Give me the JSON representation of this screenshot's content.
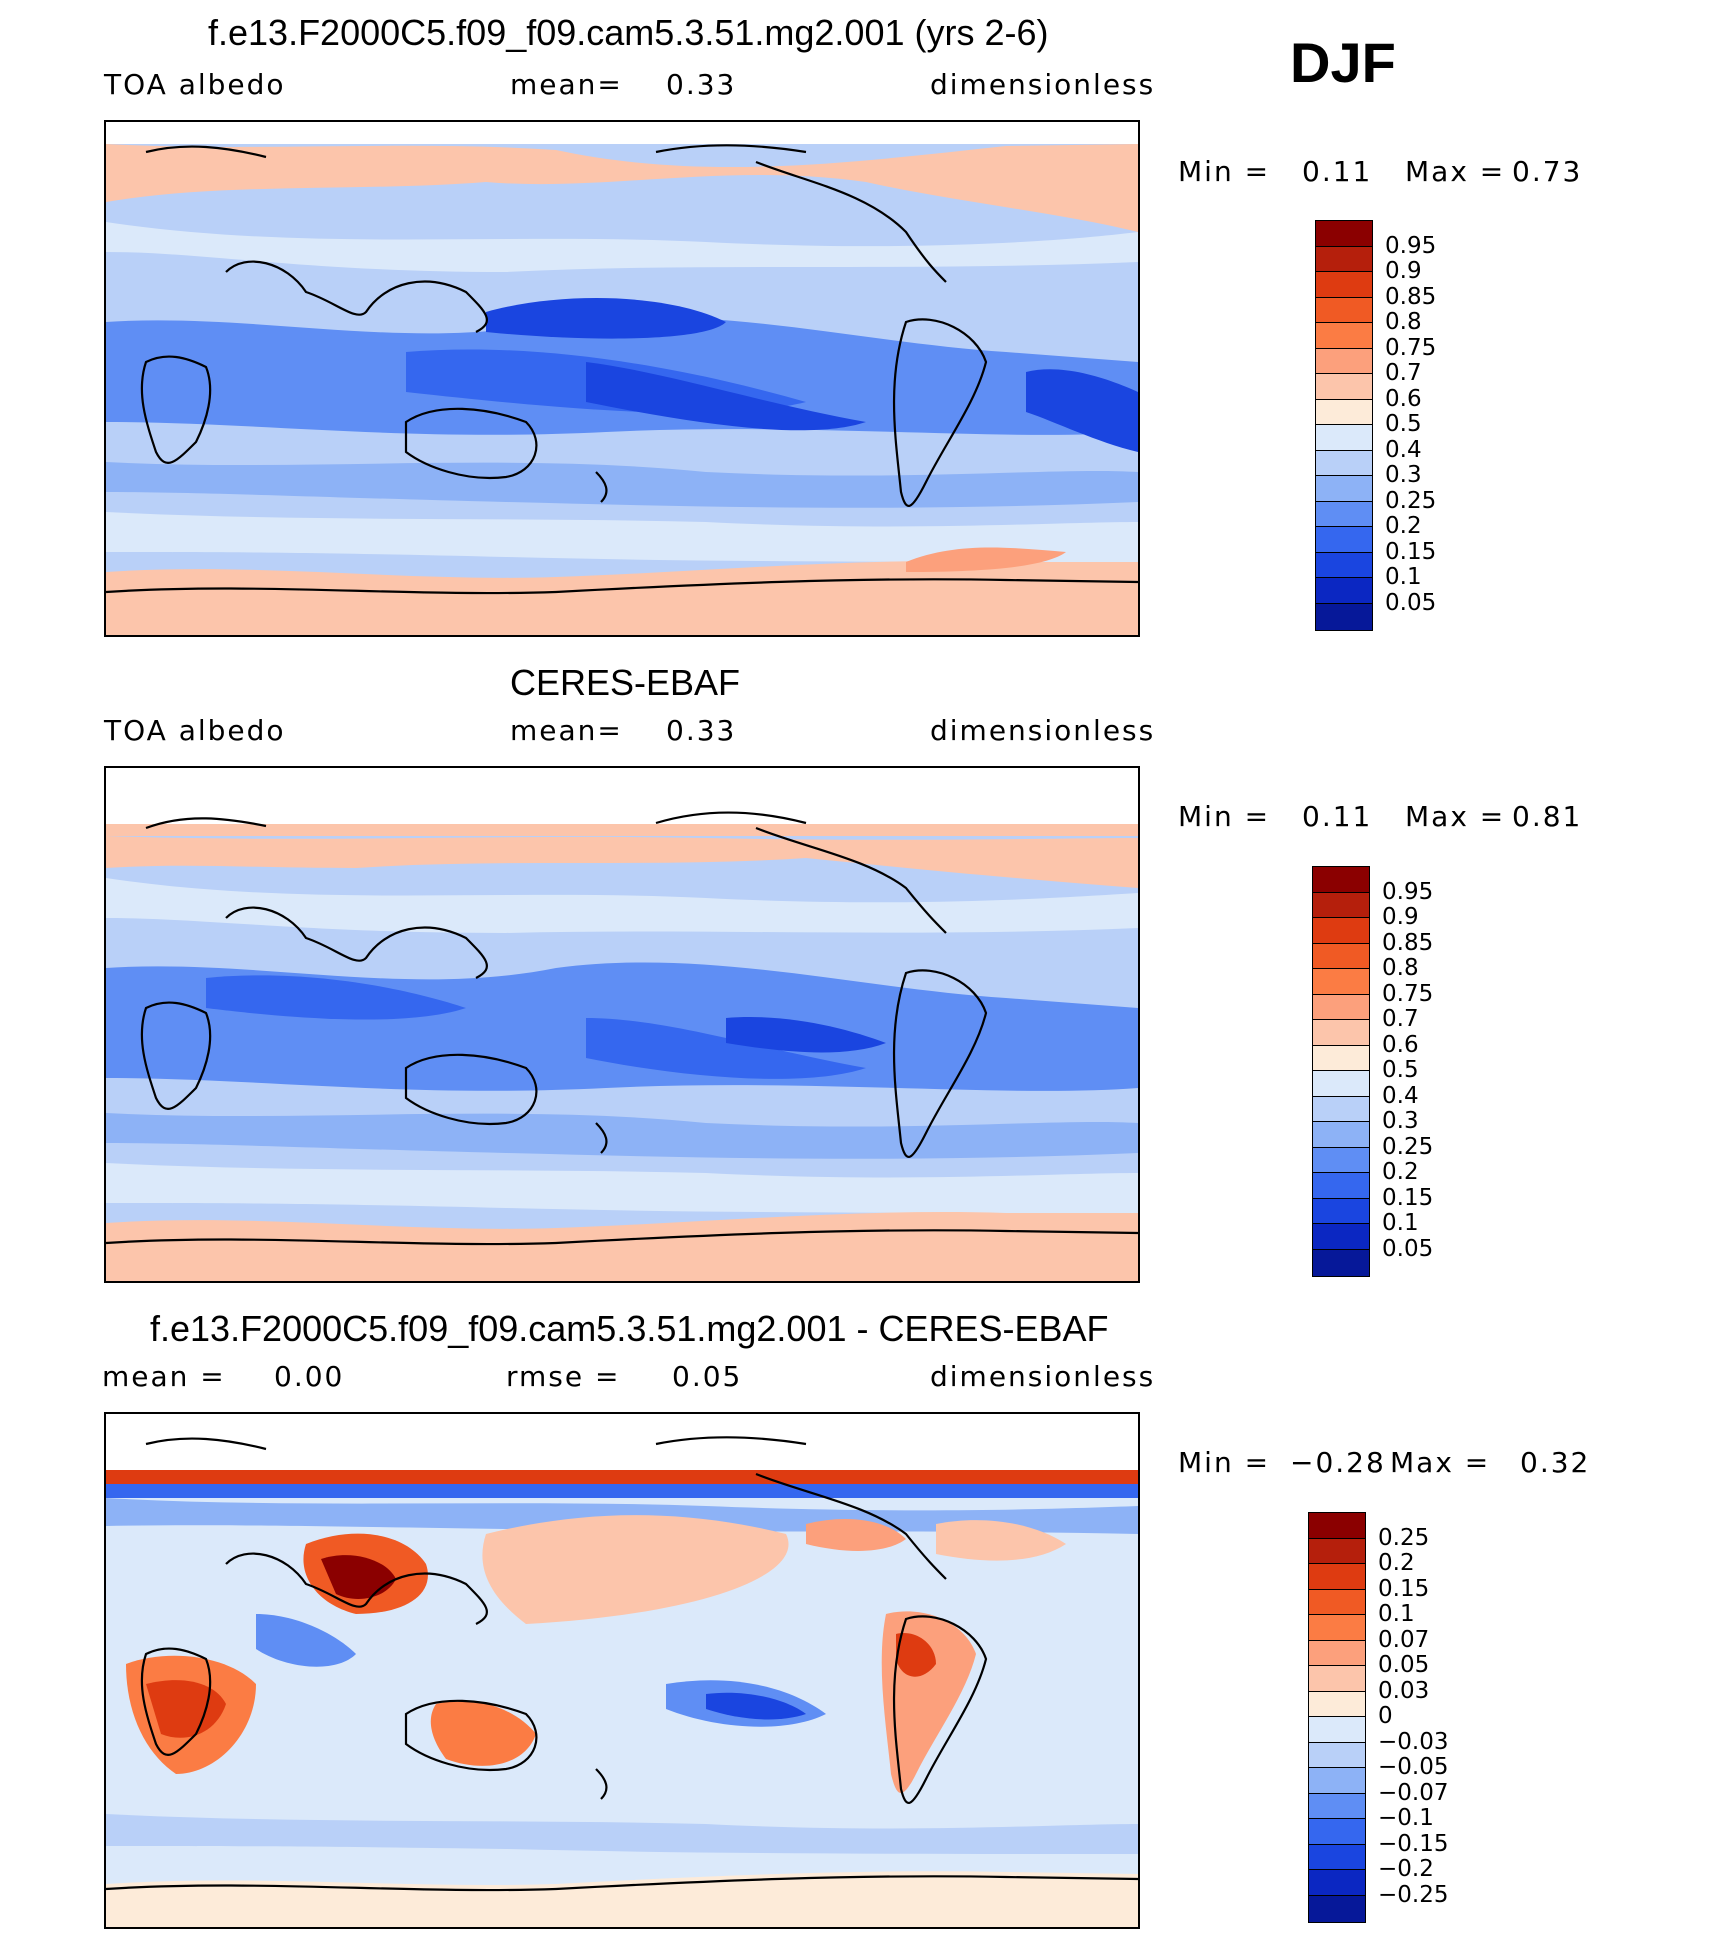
{
  "season": "DJF",
  "panels": [
    {
      "id": "model",
      "title": "f.e13.F2000C5.f09_f09.cam5.3.51.mg2.001 (yrs 2-6)",
      "left_label": "TOA albedo",
      "center_label": "mean=",
      "center_value": "0.33",
      "right_label": "dimensionless",
      "stats_min_label": "Min =",
      "stats_min": "0.11",
      "stats_max_label": "Max =",
      "stats_max": "0.73",
      "colorbar": {
        "colors": [
          "#8b0000",
          "#b51f0c",
          "#de3b11",
          "#f05a24",
          "#fb7c44",
          "#fca07c",
          "#fcc5ab",
          "#fdebd9",
          "#dbe9fa",
          "#b9d0f8",
          "#8db2f6",
          "#5f8ef4",
          "#3567ef",
          "#1a45e0",
          "#0b27c2",
          "#061899"
        ],
        "labels": [
          "0.95",
          "0.9",
          "0.85",
          "0.8",
          "0.75",
          "0.7",
          "0.6",
          "0.5",
          "0.4",
          "0.3",
          "0.25",
          "0.2",
          "0.15",
          "0.1",
          "0.05"
        ]
      }
    },
    {
      "id": "obs",
      "title": "CERES-EBAF",
      "left_label": "TOA albedo",
      "center_label": "mean=",
      "center_value": "0.33",
      "right_label": "dimensionless",
      "stats_min_label": "Min =",
      "stats_min": "0.11",
      "stats_max_label": "Max =",
      "stats_max": "0.81",
      "colorbar": {
        "colors": [
          "#8b0000",
          "#b51f0c",
          "#de3b11",
          "#f05a24",
          "#fb7c44",
          "#fca07c",
          "#fcc5ab",
          "#fdebd9",
          "#dbe9fa",
          "#b9d0f8",
          "#8db2f6",
          "#5f8ef4",
          "#3567ef",
          "#1a45e0",
          "#0b27c2",
          "#061899"
        ],
        "labels": [
          "0.95",
          "0.9",
          "0.85",
          "0.8",
          "0.75",
          "0.7",
          "0.6",
          "0.5",
          "0.4",
          "0.3",
          "0.25",
          "0.2",
          "0.15",
          "0.1",
          "0.05"
        ]
      }
    },
    {
      "id": "diff",
      "title": "f.e13.F2000C5.f09_f09.cam5.3.51.mg2.001 - CERES-EBAF",
      "left_label": "mean =",
      "left_value": "0.00",
      "center_label": "rmse =",
      "center_value": "0.05",
      "right_label": "dimensionless",
      "stats_min_label": "Min =",
      "stats_min": "−0.28",
      "stats_max_label": "Max =",
      "stats_max": "0.32",
      "colorbar": {
        "colors": [
          "#8b0000",
          "#b51f0c",
          "#de3b11",
          "#f05a24",
          "#fb7c44",
          "#fca07c",
          "#fcc5ab",
          "#fdebd9",
          "#dbe9fa",
          "#b9d0f8",
          "#8db2f6",
          "#5f8ef4",
          "#3567ef",
          "#1a45e0",
          "#0b27c2",
          "#061899"
        ],
        "labels": [
          "0.25",
          "0.2",
          "0.15",
          "0.1",
          "0.07",
          "0.05",
          "0.03",
          "0",
          "−0.03",
          "−0.05",
          "−0.07",
          "−0.1",
          "−0.15",
          "−0.2",
          "−0.25"
        ]
      }
    }
  ]
}
